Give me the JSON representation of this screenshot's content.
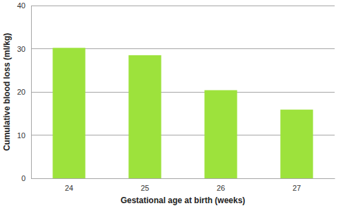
{
  "chart_data": {
    "type": "bar",
    "categories": [
      "24",
      "25",
      "26",
      "27"
    ],
    "values": [
      30.2,
      28.5,
      20.4,
      15.9
    ],
    "color": "#9de23c",
    "x_label": "Gestational age at birth (weeks)",
    "y_label": "Cumulative blood loss (ml/kg)",
    "ylim": [
      0,
      40
    ],
    "yticks": [
      0,
      10,
      20,
      30,
      40
    ],
    "grid": true
  }
}
